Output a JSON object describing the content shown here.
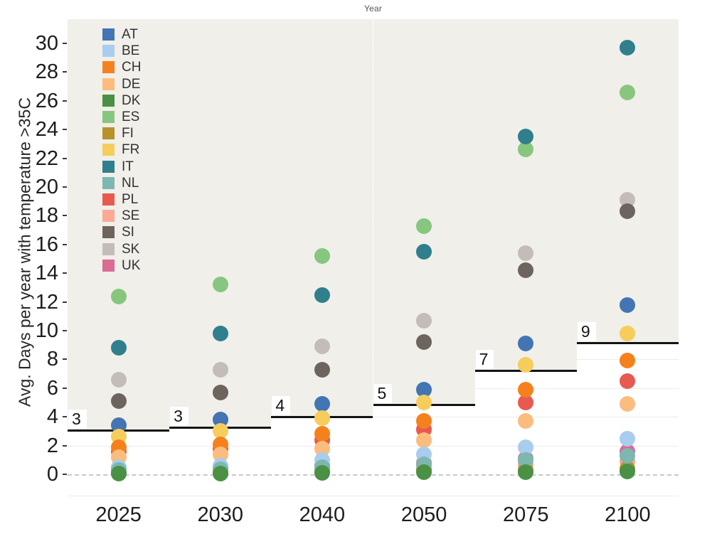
{
  "header": {
    "title": "Year"
  },
  "chart_data": {
    "type": "scatter",
    "title": "Year",
    "xlabel": "Year",
    "ylabel": "Avg. Days per year with temperature >35C",
    "categories": [
      "2025",
      "2030",
      "2040",
      "2050",
      "2075",
      "2100"
    ],
    "y_ticks": [
      0,
      2,
      4,
      6,
      8,
      10,
      12,
      14,
      16,
      18,
      20,
      22,
      24,
      26,
      28,
      30
    ],
    "ylim": [
      0,
      31.7
    ],
    "grid": "on",
    "legend_position": "top-left",
    "plot_background": "#f0efe9",
    "step_line_color": "#141414",
    "series": [
      {
        "name": "AT",
        "color": "#4374b3",
        "values": [
          3.4,
          3.8,
          4.9,
          5.9,
          9.1,
          11.8
        ]
      },
      {
        "name": "BE",
        "color": "#a9cdee",
        "values": [
          0.5,
          0.6,
          1.0,
          1.4,
          1.9,
          2.5
        ]
      },
      {
        "name": "CH",
        "color": "#f5811d",
        "values": [
          1.9,
          2.1,
          2.8,
          3.7,
          5.9,
          7.9
        ]
      },
      {
        "name": "DE",
        "color": "#fabd7e",
        "values": [
          1.2,
          1.4,
          1.8,
          2.4,
          3.7,
          4.9
        ]
      },
      {
        "name": "DK",
        "color": "#4a9145",
        "values": [
          0.05,
          0.05,
          0.1,
          0.15,
          0.15,
          0.2
        ]
      },
      {
        "name": "ES",
        "color": "#87c67f",
        "values": [
          12.4,
          13.2,
          15.2,
          17.3,
          22.6,
          26.6
        ]
      },
      {
        "name": "FI",
        "color": "#b8922a",
        "values": [
          0.1,
          0.1,
          0.2,
          0.3,
          0.3,
          0.4
        ]
      },
      {
        "name": "FR",
        "color": "#f6cd5a",
        "values": [
          2.6,
          3.0,
          3.9,
          5.0,
          7.6,
          9.8
        ]
      },
      {
        "name": "IT",
        "color": "#2f7f8d",
        "values": [
          8.8,
          9.8,
          12.5,
          15.5,
          23.5,
          29.7
        ]
      },
      {
        "name": "NL",
        "color": "#7cb7b0",
        "values": [
          0.3,
          0.35,
          0.5,
          0.7,
          1.0,
          1.3
        ]
      },
      {
        "name": "PL",
        "color": "#e85a50",
        "values": [
          1.6,
          1.8,
          2.4,
          3.1,
          5.0,
          6.5
        ]
      },
      {
        "name": "SE",
        "color": "#fba993",
        "values": [
          0.2,
          0.25,
          0.4,
          0.5,
          0.7,
          0.9
        ]
      },
      {
        "name": "SI",
        "color": "#6d645d",
        "values": [
          5.1,
          5.7,
          7.3,
          9.2,
          14.2,
          18.3
        ]
      },
      {
        "name": "SK",
        "color": "#c4bdb7",
        "values": [
          6.6,
          7.3,
          8.9,
          10.7,
          15.4,
          19.1
        ]
      },
      {
        "name": "UK",
        "color": "#da6b95",
        "values": [
          0.4,
          0.45,
          0.6,
          0.8,
          1.1,
          1.6
        ]
      }
    ],
    "draw_order": [
      "ES",
      "IT",
      "SK",
      "SI",
      "SE",
      "UK",
      "FI",
      "PL",
      "AT",
      "FR",
      "CH",
      "DE",
      "BE",
      "NL",
      "DK"
    ],
    "threshold_steps": {
      "labels": [
        "3",
        "3",
        "4",
        "5",
        "7",
        "9"
      ],
      "values": [
        3.1,
        3.3,
        4.05,
        4.9,
        7.3,
        9.2
      ]
    }
  }
}
